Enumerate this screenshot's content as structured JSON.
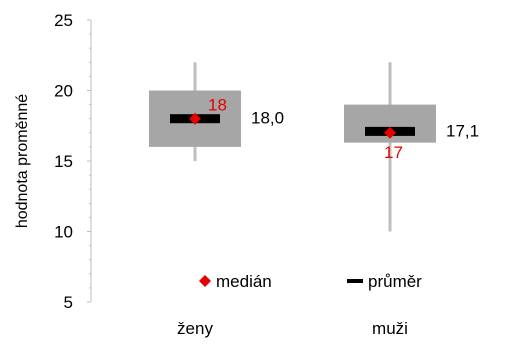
{
  "chart_data": {
    "type": "box",
    "ylabel": "hodnota proměnné",
    "ylim": [
      5,
      25
    ],
    "yticks": [
      5,
      10,
      15,
      20,
      25
    ],
    "grid": false,
    "legend_position": "bottom-inside",
    "categories": [
      "ženy",
      "muži"
    ],
    "boxes": [
      {
        "category": "ženy",
        "whisker_low": 15,
        "q1": 16,
        "q3": 20,
        "whisker_high": 22,
        "median": 18,
        "mean": 18.0,
        "median_label": "18",
        "mean_label": "18,0"
      },
      {
        "category": "muži",
        "whisker_low": 10,
        "q1": 16.3,
        "q3": 19,
        "whisker_high": 22,
        "median": 17,
        "mean": 17.1,
        "median_label": "17",
        "mean_label": "17,1"
      }
    ],
    "legend": [
      {
        "key": "median",
        "label": "medián",
        "color": "#e60000"
      },
      {
        "key": "mean",
        "label": "průměr",
        "color": "#000000"
      }
    ],
    "colors": {
      "box": "#a6a6a6",
      "whisker": "#bfbfbf",
      "median": "#e60000",
      "mean": "#000000",
      "axis": "#bfbfbf"
    }
  }
}
